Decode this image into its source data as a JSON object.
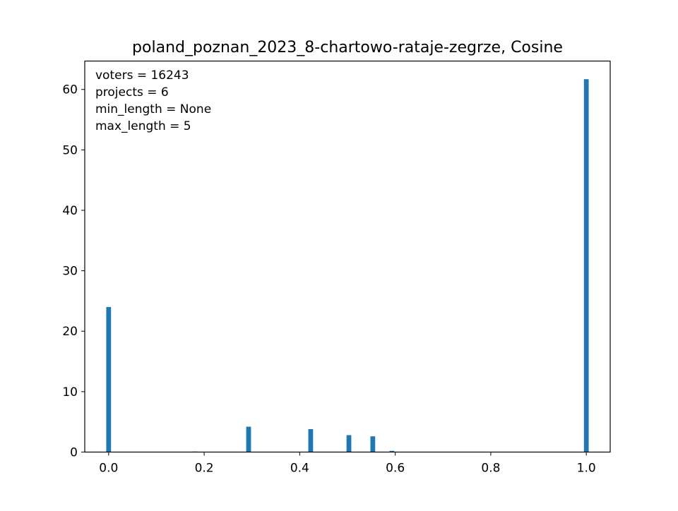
{
  "chart_data": {
    "type": "bar",
    "title": "poland_poznan_2023_8-chartowo-rataje-zegrze, Cosine",
    "xlabel": "",
    "ylabel": "",
    "xlim": [
      -0.05,
      1.05
    ],
    "ylim": [
      0,
      64.7
    ],
    "bar_width": 0.01,
    "bar_color": "#1f77b4",
    "grid": false,
    "x_ticks": [
      {
        "value": 0.0,
        "label": "0.0"
      },
      {
        "value": 0.2,
        "label": "0.2"
      },
      {
        "value": 0.4,
        "label": "0.4"
      },
      {
        "value": 0.6,
        "label": "0.6"
      },
      {
        "value": 0.8,
        "label": "0.8"
      },
      {
        "value": 1.0,
        "label": "1.0"
      }
    ],
    "y_ticks": [
      {
        "value": 0,
        "label": "0"
      },
      {
        "value": 10,
        "label": "10"
      },
      {
        "value": 20,
        "label": "20"
      },
      {
        "value": 30,
        "label": "30"
      },
      {
        "value": 40,
        "label": "40"
      },
      {
        "value": 50,
        "label": "50"
      },
      {
        "value": 60,
        "label": "60"
      }
    ],
    "annotation_lines": [
      "voters = 16243",
      "projects = 6",
      "min_length = None",
      "max_length = 5"
    ],
    "bars": [
      {
        "x": 0.0,
        "y": 24.0
      },
      {
        "x": 0.133,
        "y": 0.05
      },
      {
        "x": 0.18,
        "y": 0.08
      },
      {
        "x": 0.22,
        "y": 0.05
      },
      {
        "x": 0.293,
        "y": 4.2
      },
      {
        "x": 0.33,
        "y": 0.05
      },
      {
        "x": 0.36,
        "y": 0.05
      },
      {
        "x": 0.423,
        "y": 3.8
      },
      {
        "x": 0.503,
        "y": 2.8
      },
      {
        "x": 0.553,
        "y": 2.6
      },
      {
        "x": 0.593,
        "y": 0.2
      },
      {
        "x": 0.63,
        "y": 0.05
      },
      {
        "x": 0.68,
        "y": 0.05
      },
      {
        "x": 1.0,
        "y": 61.7
      }
    ]
  }
}
